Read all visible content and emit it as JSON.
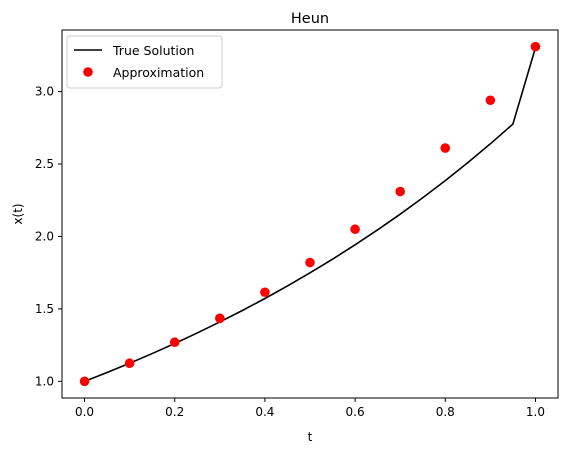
{
  "chart_data": {
    "type": "line",
    "title": "Heun",
    "xlabel": "t",
    "ylabel": "x(t)",
    "xlim": [
      -0.05,
      1.05
    ],
    "ylim": [
      0.885,
      3.425
    ],
    "x_ticks": [
      0.0,
      0.2,
      0.4,
      0.6,
      0.8,
      1.0
    ],
    "x_tick_labels": [
      "0.0",
      "0.2",
      "0.4",
      "0.6",
      "0.8",
      "1.0"
    ],
    "y_ticks": [
      1.0,
      1.5,
      2.0,
      2.5,
      3.0
    ],
    "y_tick_labels": [
      "1.0",
      "1.5",
      "2.0",
      "2.5",
      "3.0"
    ],
    "grid": false,
    "legend_position": "top-left",
    "series": [
      {
        "name": "True Solution",
        "kind": "line",
        "color": "#000000",
        "x": [
          0.0,
          0.05,
          0.1,
          0.15,
          0.2,
          0.25,
          0.3,
          0.35,
          0.4,
          0.45,
          0.5,
          0.55,
          0.6,
          0.65,
          0.7,
          0.75,
          0.8,
          0.85,
          0.9,
          0.95,
          1.0
        ],
        "y": [
          1.0,
          1.0613,
          1.1252,
          1.1918,
          1.2614,
          1.334,
          1.4099,
          1.4891,
          1.5718,
          1.6582,
          1.7487,
          1.8433,
          1.9421,
          2.0456,
          2.1538,
          2.267,
          2.3855,
          2.5096,
          2.6396,
          2.7757,
          3.3027
        ]
      },
      {
        "name": "Approximation",
        "kind": "scatter",
        "color": "#ff0000",
        "x": [
          0.0,
          0.1,
          0.2,
          0.3,
          0.4,
          0.5,
          0.6,
          0.7,
          0.8,
          0.9,
          1.0
        ],
        "y": [
          1.0,
          1.125,
          1.27,
          1.435,
          1.615,
          1.82,
          2.05,
          2.31,
          2.61,
          2.94,
          3.31
        ]
      }
    ]
  }
}
